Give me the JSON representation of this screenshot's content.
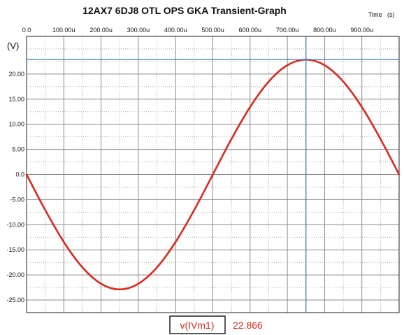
{
  "chart_data": {
    "type": "line",
    "title": "12AX7 6DJ8 OTL OPS GKA Transient-Graph",
    "xlabel": "Time",
    "xunit": "(s)",
    "ylabel": "(V)",
    "xlim": [
      0,
      1000
    ],
    "ylim": [
      -27.5,
      27.5
    ],
    "x_tick_values": [
      0,
      100,
      200,
      300,
      400,
      500,
      600,
      700,
      800,
      900
    ],
    "x_tick_labels": [
      "0.0",
      "100.00u",
      "200.00u",
      "300.00u",
      "400.00u",
      "500.00u",
      "600.00u",
      "700.00u",
      "800.00u",
      "900.00u"
    ],
    "y_tick_values": [
      20,
      15,
      10,
      5,
      0,
      -5,
      -10,
      -15,
      -20,
      -25
    ],
    "y_tick_labels": [
      "20.00",
      "15.00",
      "10.00",
      "5.00",
      "0.0",
      "-5.00",
      "-10.00",
      "-15.00",
      "-20.00",
      "-25.00"
    ],
    "x_minor_step": 50,
    "y_minor_step": 2.5,
    "grid": true,
    "series": [
      {
        "name": "v(IVm1)",
        "color": "#e0281c",
        "x": [
          0,
          50,
          100,
          150,
          200,
          250,
          300,
          350,
          400,
          450,
          500,
          550,
          600,
          650,
          700,
          750,
          800,
          850,
          900,
          950,
          1000
        ],
        "y": [
          0,
          -7.07,
          -13.44,
          -18.5,
          -21.75,
          -22.87,
          -21.75,
          -18.5,
          -13.44,
          -7.07,
          0,
          7.07,
          13.44,
          18.5,
          21.75,
          22.87,
          21.75,
          18.5,
          13.44,
          7.07,
          0
        ]
      }
    ],
    "cursor": {
      "x": 750,
      "y": 22.866,
      "color": "#3b7fc4",
      "legend_label": "v(IVm1)",
      "value_label": "22.866"
    }
  }
}
